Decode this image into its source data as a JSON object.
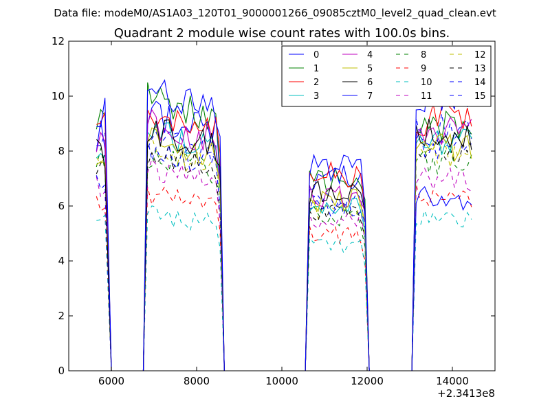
{
  "figure": {
    "suptitle": "Data file: modeM0/AS1A03_120T01_9000001266_09085cztM0_level2_quad_clean.evt"
  },
  "chart_data": {
    "type": "line",
    "title": "Quadrant 2 module wise count rates with 100.0s bins.",
    "xlabel": "",
    "ylabel": "",
    "x_offset_label": "+2.3413e8",
    "xlim": [
      5000,
      15000
    ],
    "ylim": [
      0,
      12
    ],
    "xticks": [
      6000,
      8000,
      10000,
      12000,
      14000
    ],
    "xtick_labels": [
      "6000",
      "8000",
      "10000",
      "12000",
      "14000"
    ],
    "yticks": [
      0,
      2,
      4,
      6,
      8,
      10,
      12
    ],
    "ytick_labels": [
      "0",
      "2",
      "4",
      "6",
      "8",
      "10",
      "12"
    ],
    "grid": false,
    "legend": {
      "placement": "upper-right",
      "columns": 4
    },
    "segments": [
      {
        "start": 5650,
        "count": 3,
        "pre": null,
        "post": 6000
      },
      {
        "start": 6850,
        "count": 18,
        "pre": 6750,
        "post": 8650
      },
      {
        "start": 10650,
        "count": 14,
        "pre": 10550,
        "post": 12050
      },
      {
        "start": 13150,
        "count": 14,
        "pre": 13050,
        "post": null
      }
    ],
    "series": [
      {
        "name": "0",
        "color": "#0000ff",
        "style": "solid",
        "levels": [
          8.6,
          8.8,
          7.0,
          6.3
        ]
      },
      {
        "name": "1",
        "color": "#008000",
        "style": "solid",
        "levels": [
          9.2,
          9.3,
          6.9,
          9.0
        ]
      },
      {
        "name": "2",
        "color": "#ff0000",
        "style": "solid",
        "levels": [
          9.6,
          9.0,
          7.1,
          9.2
        ]
      },
      {
        "name": "3",
        "color": "#00bfbf",
        "style": "solid",
        "levels": [
          8.0,
          8.2,
          6.1,
          8.3
        ]
      },
      {
        "name": "4",
        "color": "#bf00bf",
        "style": "solid",
        "levels": [
          8.3,
          8.5,
          6.4,
          8.7
        ]
      },
      {
        "name": "5",
        "color": "#bfbf00",
        "style": "solid",
        "levels": [
          8.0,
          7.9,
          6.2,
          8.1
        ]
      },
      {
        "name": "6",
        "color": "#000000",
        "style": "solid",
        "levels": [
          7.9,
          8.3,
          6.5,
          8.6
        ]
      },
      {
        "name": "7",
        "color": "#0000ff",
        "style": "solid",
        "levels": [
          9.4,
          9.6,
          7.4,
          10.1
        ]
      },
      {
        "name": "8",
        "color": "#008000",
        "style": "dashed",
        "levels": [
          7.6,
          7.4,
          5.6,
          7.7
        ]
      },
      {
        "name": "9",
        "color": "#ff0000",
        "style": "dashed",
        "levels": [
          6.0,
          6.1,
          5.0,
          6.4
        ]
      },
      {
        "name": "10",
        "color": "#00bfbf",
        "style": "dashed",
        "levels": [
          5.3,
          5.4,
          4.6,
          5.6
        ]
      },
      {
        "name": "11",
        "color": "#bf00bf",
        "style": "dashed",
        "levels": [
          6.8,
          6.9,
          5.5,
          7.0
        ]
      },
      {
        "name": "12",
        "color": "#bfbf00",
        "style": "dashed",
        "levels": [
          7.8,
          7.6,
          5.9,
          7.9
        ]
      },
      {
        "name": "13",
        "color": "#000000",
        "style": "dashed",
        "levels": [
          7.4,
          7.5,
          5.8,
          8.0
        ]
      },
      {
        "name": "14",
        "color": "#0000ff",
        "style": "dashed",
        "levels": [
          8.2,
          8.0,
          6.2,
          8.3
        ]
      },
      {
        "name": "15",
        "color": "#0000ff",
        "style": "dashed",
        "levels": [
          7.0,
          7.6,
          6.0,
          8.8
        ]
      }
    ]
  }
}
